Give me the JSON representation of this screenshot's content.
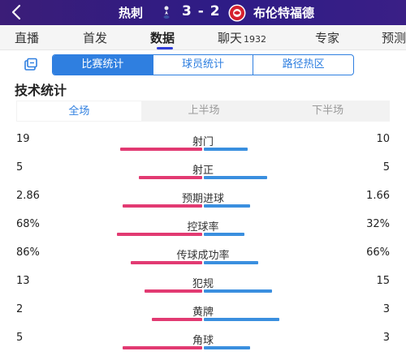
{
  "header": {
    "home_team": "热刺",
    "score": "3 - 2",
    "away_team": "布伦特福德"
  },
  "nav": {
    "tabs": [
      {
        "label": "直播"
      },
      {
        "label": "首发"
      },
      {
        "label": "数据"
      },
      {
        "label": "聊天",
        "count": "1932"
      },
      {
        "label": "专家"
      },
      {
        "label": "预测"
      }
    ]
  },
  "subtabs": [
    "比赛统计",
    "球员统计",
    "路径热区"
  ],
  "section_title": "技术统计",
  "periods": [
    "全场",
    "上半场",
    "下半场"
  ],
  "stats": [
    {
      "label": "射门",
      "home": "19",
      "away": "10",
      "home_frac": 0.65,
      "away_frac": 0.35
    },
    {
      "label": "射正",
      "home": "5",
      "away": "5",
      "home_frac": 0.5,
      "away_frac": 0.5
    },
    {
      "label": "预期进球",
      "home": "2.86",
      "away": "1.66",
      "home_frac": 0.63,
      "away_frac": 0.37
    },
    {
      "label": "控球率",
      "home": "68%",
      "away": "32%",
      "home_frac": 0.68,
      "away_frac": 0.32
    },
    {
      "label": "传球成功率",
      "home": "86%",
      "away": "66%",
      "home_frac": 0.57,
      "away_frac": 0.43
    },
    {
      "label": "犯规",
      "home": "13",
      "away": "15",
      "home_frac": 0.46,
      "away_frac": 0.54
    },
    {
      "label": "黄牌",
      "home": "2",
      "away": "3",
      "home_frac": 0.4,
      "away_frac": 0.6
    },
    {
      "label": "角球",
      "home": "5",
      "away": "3",
      "home_frac": 0.63,
      "away_frac": 0.37
    }
  ],
  "colors": {
    "home_bar": "#e23a72",
    "away_bar": "#3a8fdf",
    "accent": "#2f7fe0",
    "header_bg": "#2e1c86"
  }
}
